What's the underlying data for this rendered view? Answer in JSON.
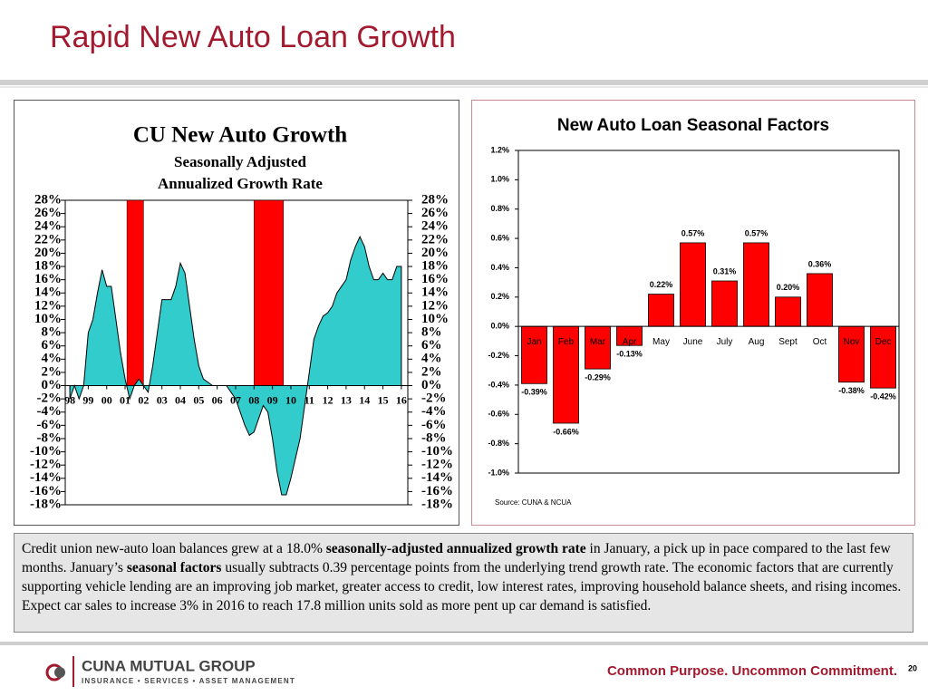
{
  "title": "Rapid New Auto Loan Growth",
  "chart_data": [
    {
      "type": "area",
      "title": "CU New Auto Growth",
      "subtitle": [
        "Seasonally Adjusted",
        "Annualized Growth Rate"
      ],
      "color": "#33cccc",
      "shade_color": "#ff0000",
      "x": [
        1998,
        1998.25,
        1998.5,
        1998.75,
        1999,
        1999.25,
        1999.5,
        1999.75,
        2000,
        2000.25,
        2000.5,
        2000.75,
        2001,
        2001.25,
        2001.5,
        2001.75,
        2002,
        2002.25,
        2002.5,
        2002.75,
        2003,
        2003.25,
        2003.5,
        2003.75,
        2004,
        2004.25,
        2004.5,
        2004.75,
        2005,
        2005.25,
        2005.5,
        2005.75,
        2006,
        2006.25,
        2006.5,
        2006.75,
        2007,
        2007.25,
        2007.5,
        2007.75,
        2008,
        2008.25,
        2008.5,
        2008.75,
        2009,
        2009.25,
        2009.5,
        2009.75,
        2010,
        2010.25,
        2010.5,
        2010.75,
        2011,
        2011.25,
        2011.5,
        2011.75,
        2012,
        2012.25,
        2012.5,
        2012.75,
        2013,
        2013.25,
        2013.5,
        2013.75,
        2014,
        2014.25,
        2014.5,
        2014.75,
        2015,
        2015.25,
        2015.5,
        2015.75,
        2016
      ],
      "values": [
        -2,
        0,
        -2,
        0,
        8,
        10,
        14,
        17.5,
        15,
        15,
        10,
        5,
        1,
        -2,
        0,
        1,
        0,
        -1,
        3,
        8,
        13,
        13,
        13,
        15,
        18.5,
        17,
        12,
        7,
        3,
        1,
        0.5,
        0,
        0,
        0,
        0,
        -1,
        -2,
        -4,
        -6,
        -7.5,
        -7,
        -5,
        -3,
        -4,
        -8,
        -13,
        -16.5,
        -16.5,
        -14,
        -11,
        -8,
        -3,
        2,
        7,
        9,
        10.5,
        11,
        12,
        14,
        15,
        16,
        19,
        21,
        22.5,
        21,
        18,
        16,
        16,
        17,
        16,
        16,
        18,
        18
      ],
      "shaded": [
        [
          2001.1,
          2002.0
        ],
        [
          2008.0,
          2009.6
        ]
      ],
      "xlim": [
        1997.75,
        2016.35
      ],
      "xticks": [
        {
          "value": 1998,
          "label": "98"
        },
        {
          "value": 1999,
          "label": "99"
        },
        {
          "value": 2000,
          "label": "00"
        },
        {
          "value": 2001,
          "label": "01"
        },
        {
          "value": 2002,
          "label": "02"
        },
        {
          "value": 2003,
          "label": "03"
        },
        {
          "value": 2004,
          "label": "04"
        },
        {
          "value": 2005,
          "label": "05"
        },
        {
          "value": 2006,
          "label": "06"
        },
        {
          "value": 2007,
          "label": "07"
        },
        {
          "value": 2008,
          "label": "08"
        },
        {
          "value": 2009,
          "label": "09"
        },
        {
          "value": 2010,
          "label": "10"
        },
        {
          "value": 2011,
          "label": "11"
        },
        {
          "value": 2012,
          "label": "12"
        },
        {
          "value": 2013,
          "label": "13"
        },
        {
          "value": 2014,
          "label": "14"
        },
        {
          "value": 2015,
          "label": "15"
        },
        {
          "value": 2016,
          "label": "16"
        }
      ],
      "ylim": [
        -18,
        28
      ],
      "yticks": [
        {
          "value": 28,
          "label": "28%"
        },
        {
          "value": 26,
          "label": "26%"
        },
        {
          "value": 24,
          "label": "24%"
        },
        {
          "value": 22,
          "label": "22%"
        },
        {
          "value": 20,
          "label": "20%"
        },
        {
          "value": 18,
          "label": "18%"
        },
        {
          "value": 16,
          "label": "16%"
        },
        {
          "value": 14,
          "label": "14%"
        },
        {
          "value": 12,
          "label": "12%"
        },
        {
          "value": 10,
          "label": "10%"
        },
        {
          "value": 8,
          "label": "8%"
        },
        {
          "value": 6,
          "label": "6%"
        },
        {
          "value": 4,
          "label": "4%"
        },
        {
          "value": 2,
          "label": "2%"
        },
        {
          "value": 0,
          "label": "0%"
        },
        {
          "value": -2,
          "label": "-2%"
        },
        {
          "value": -4,
          "label": "-4%"
        },
        {
          "value": -6,
          "label": "-6%"
        },
        {
          "value": -8,
          "label": "-8%"
        },
        {
          "value": -10,
          "label": "-10%"
        },
        {
          "value": -12,
          "label": "-12%"
        },
        {
          "value": -14,
          "label": "-14%"
        },
        {
          "value": -16,
          "label": "-16%"
        },
        {
          "value": -18,
          "label": "-18%"
        }
      ]
    },
    {
      "type": "bar",
      "title": "New Auto Loan Seasonal Factors",
      "note": "Source: CUNA & NCUA",
      "color": "#ff0000",
      "categories": [
        "Jan",
        "Feb",
        "Mar",
        "Apr",
        "May",
        "June",
        "July",
        "Aug",
        "Sept",
        "Oct",
        "Nov",
        "Dec"
      ],
      "values": [
        -0.39,
        -0.66,
        -0.29,
        -0.13,
        0.22,
        0.57,
        0.31,
        0.57,
        0.2,
        0.36,
        -0.38,
        -0.42
      ],
      "value_labels": [
        "-0.39%",
        "-0.66%",
        "-0.29%",
        "-0.13%",
        "0.22%",
        "0.57%",
        "0.31%",
        "0.57%",
        "0.20%",
        "0.36%",
        "-0.38%",
        "-0.42%"
      ],
      "ylim": [
        -1.0,
        1.2
      ],
      "yticks": [
        {
          "value": 1.2,
          "label": "1.2%"
        },
        {
          "value": 1.0,
          "label": "1.0%"
        },
        {
          "value": 0.8,
          "label": "0.8%"
        },
        {
          "value": 0.6,
          "label": "0.6%"
        },
        {
          "value": 0.4,
          "label": "0.4%"
        },
        {
          "value": 0.2,
          "label": "0.2%"
        },
        {
          "value": 0.0,
          "label": "0.0%"
        },
        {
          "value": -0.2,
          "label": "-0.2%"
        },
        {
          "value": -0.4,
          "label": "-0.4%"
        },
        {
          "value": -0.6,
          "label": "-0.6%"
        },
        {
          "value": -0.8,
          "label": "-0.8%"
        },
        {
          "value": -1.0,
          "label": "-1.0%"
        }
      ]
    }
  ],
  "body": [
    {
      "text": "Credit union new-auto loan balances grew at a 18.0% ",
      "bold": false
    },
    {
      "text": "seasonally-adjusted annualized growth rate",
      "bold": true
    },
    {
      "text": " in January, a pick up in pace compared to the last few months. January’s ",
      "bold": false
    },
    {
      "text": "seasonal factors",
      "bold": true
    },
    {
      "text": " usually subtracts 0.39 percentage points from the underlying trend growth rate. The economic factors that are currently supporting vehicle lending are an improving job market, greater access to credit, low interest rates, improving household balance sheets, and rising incomes. Expect car sales to increase 3% in 2016 to reach 17.8 million units sold as more pent up car demand is satisfied.",
      "bold": false
    }
  ],
  "footer": {
    "brand": "CUNA MUTUAL GROUP",
    "tagline": "INSURANCE • SERVICES • ASSET MANAGEMENT",
    "slogan": "Common Purpose. Uncommon Commitment.",
    "page": "20"
  }
}
